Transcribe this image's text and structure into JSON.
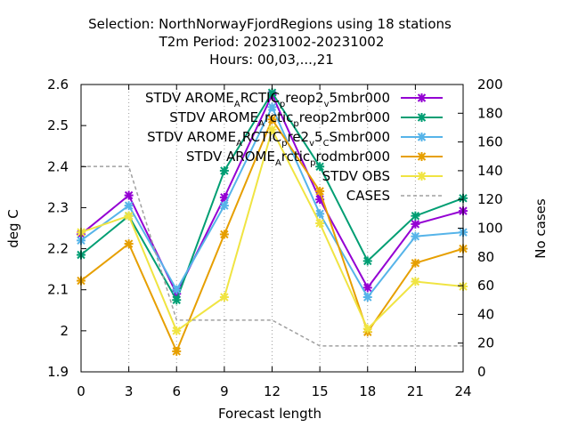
{
  "title": {
    "line1": "Selection: NorthNorwayFjordRegions using    18 stations",
    "line2": "T2m   Period: 20231002-20231002",
    "line3": "Hours:  00,03,...,21"
  },
  "chart_data": {
    "type": "line",
    "xlabel": "Forecast length",
    "ylabel": "deg C",
    "y2label": "No cases",
    "x": [
      0,
      3,
      6,
      9,
      12,
      15,
      18,
      21,
      24
    ],
    "xlim": [
      0,
      24
    ],
    "ylim": [
      1.9,
      2.6
    ],
    "y2lim": [
      0,
      200
    ],
    "xticks": [
      "0",
      "3",
      "6",
      "9",
      "12",
      "15",
      "18",
      "21",
      "24"
    ],
    "yticks": [
      "1.9",
      "2",
      "2.1",
      "2.2",
      "2.3",
      "2.4",
      "2.5",
      "2.6"
    ],
    "y2ticks": [
      "0",
      "20",
      "40",
      "60",
      "80",
      "100",
      "120",
      "140",
      "160",
      "180",
      "200"
    ],
    "grid": "x-only dotted",
    "legend_position": "top-right",
    "series": [
      {
        "name": "STDV AROME_ARCTIC_preop2_v5mbr000",
        "label_parts": [
          "STDV AROME",
          "A",
          "RCTIC",
          "p",
          "reop2",
          "v",
          "5mbr000"
        ],
        "color": "#9400d3",
        "marker": "x-star",
        "axis": "y",
        "values": [
          2.235,
          2.33,
          2.09,
          2.325,
          2.575,
          2.32,
          2.105,
          2.26,
          2.292
        ]
      },
      {
        "name": "STDV AROME_Arctic_preop2mbr000",
        "label_parts": [
          "STDV AROME",
          "A",
          "rctic",
          "p",
          "reop2mbr000"
        ],
        "color": "#009e73",
        "marker": "x-star",
        "axis": "y",
        "values": [
          2.185,
          2.28,
          2.075,
          2.39,
          2.58,
          2.4,
          2.17,
          2.28,
          2.323
        ]
      },
      {
        "name": "STDV AROME_ARCTIC_pre2_v5_CSmbr000",
        "label_parts": [
          "STDV AROME",
          "A",
          "RCTIC",
          "p",
          "re2",
          "v",
          "5",
          "C",
          "Smbr000"
        ],
        "color": "#56b4e9",
        "marker": "x-star",
        "axis": "y",
        "values": [
          2.22,
          2.305,
          2.1,
          2.305,
          2.545,
          2.285,
          2.082,
          2.23,
          2.24
        ]
      },
      {
        "name": "STDV AROME_Arctic_prodmbr000",
        "label_parts": [
          "STDV AROME",
          "A",
          "rctic",
          "p",
          "rodmbr000"
        ],
        "color": "#e69f00",
        "marker": "x-star",
        "axis": "y",
        "values": [
          2.122,
          2.212,
          1.95,
          2.235,
          2.515,
          2.34,
          1.997,
          2.165,
          2.2
        ]
      },
      {
        "name": "STDV OBS",
        "label_parts": [
          "STDV OBS"
        ],
        "color": "#f0e442",
        "marker": "x-star",
        "axis": "y",
        "values": [
          2.24,
          2.28,
          2.0,
          2.082,
          2.49,
          2.262,
          2.005,
          2.12,
          2.108
        ]
      },
      {
        "name": "CASES",
        "label_parts": [
          "CASES"
        ],
        "color": "#a0a0a0",
        "marker": "none",
        "dash": "4,3",
        "axis": "y2",
        "values": [
          143,
          143,
          36,
          36,
          36,
          18,
          18,
          18,
          18
        ]
      }
    ]
  }
}
